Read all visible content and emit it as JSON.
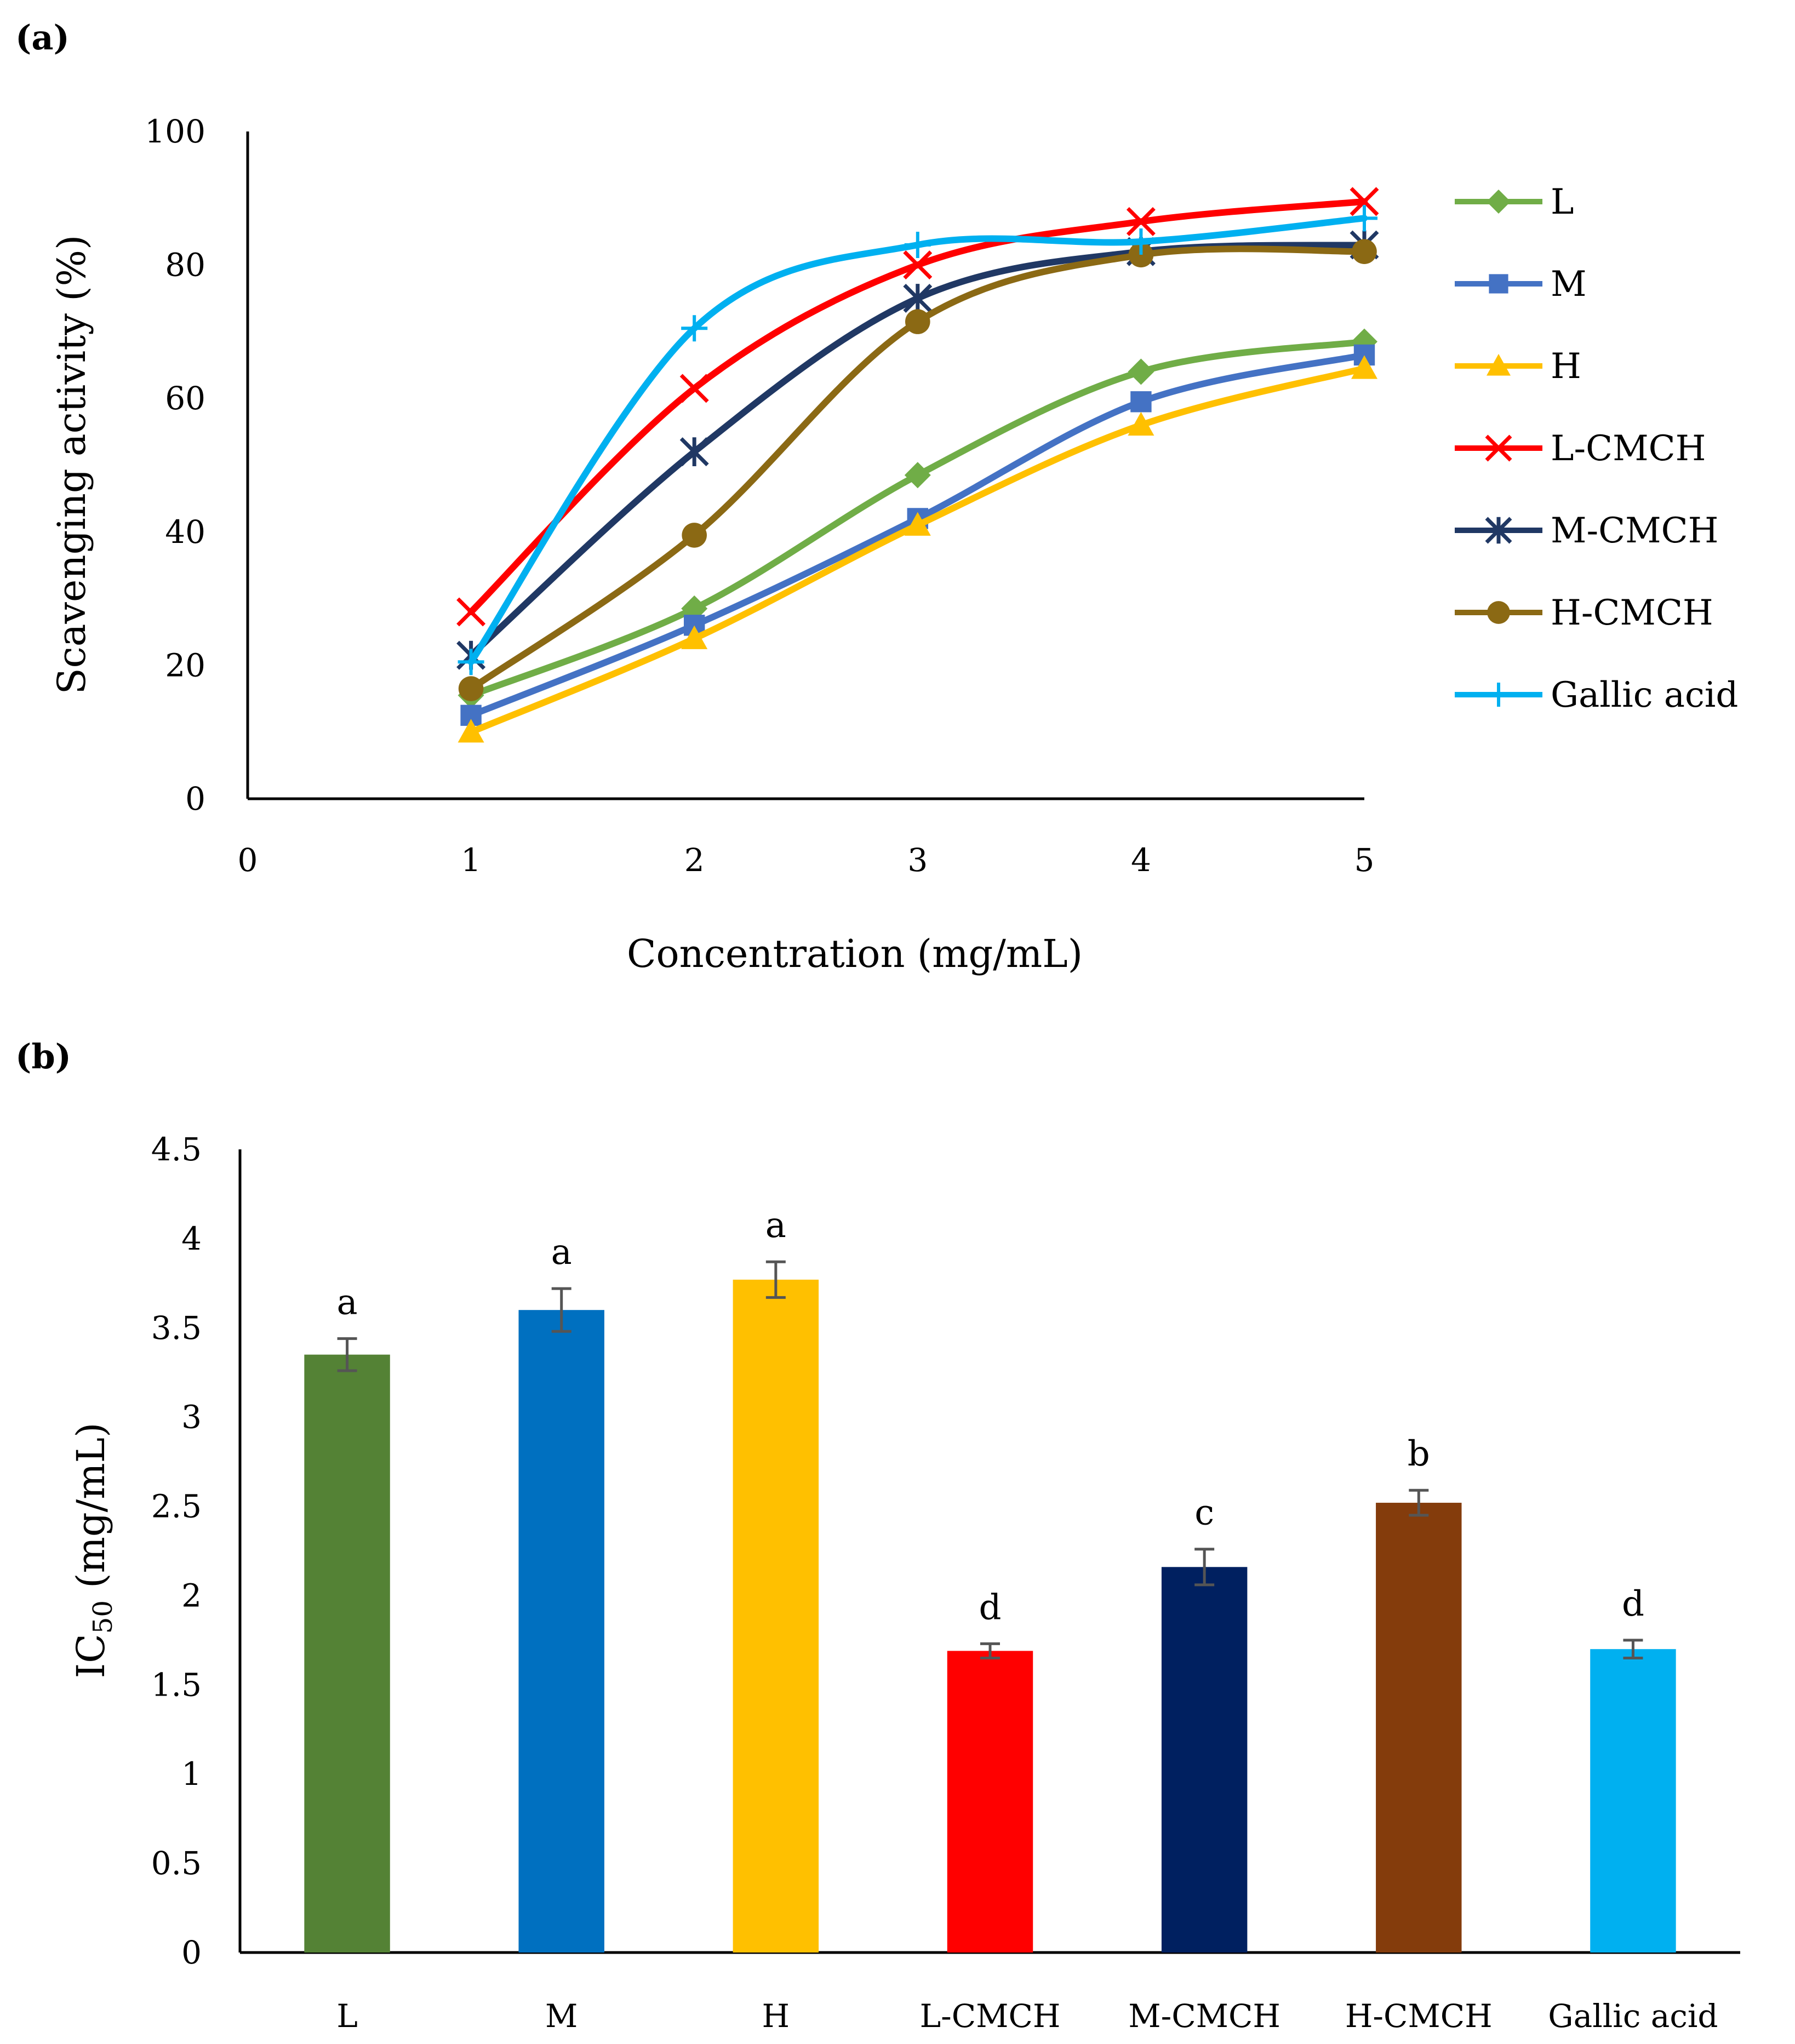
{
  "chart_data": [
    {
      "panel": "(a)",
      "type": "line",
      "xlabel": "Concentration (mg/mL)",
      "ylabel": "Scavenging activity (%)",
      "xlim": [
        0,
        5
      ],
      "ylim": [
        0,
        100
      ],
      "xticks": [
        "0",
        "1",
        "2",
        "3",
        "4",
        "5"
      ],
      "yticks": [
        "0",
        "20",
        "40",
        "60",
        "80",
        "100"
      ],
      "x": [
        1,
        2,
        3,
        4,
        5
      ],
      "legend_position": "right",
      "series": [
        {
          "name": "L",
          "values": [
            15.5,
            28.5,
            48.5,
            64,
            68.5
          ],
          "color": "#70AD47",
          "marker": "diamond"
        },
        {
          "name": "M",
          "values": [
            12.5,
            26,
            42,
            59.5,
            66.5
          ],
          "color": "#4472C4",
          "marker": "square"
        },
        {
          "name": "H",
          "values": [
            10,
            24,
            41,
            56,
            64.5
          ],
          "color": "#FFC000",
          "marker": "triangle"
        },
        {
          "name": "L-CMCH",
          "values": [
            28,
            61.5,
            80,
            86.5,
            89.5
          ],
          "color": "#FF0000",
          "marker": "x"
        },
        {
          "name": "M-CMCH",
          "values": [
            21.5,
            52,
            75,
            82,
            83
          ],
          "color": "#203864",
          "marker": "star"
        },
        {
          "name": "H-CMCH",
          "values": [
            16.5,
            39.5,
            71.5,
            81.5,
            82
          ],
          "color": "#8B6914",
          "marker": "circle"
        },
        {
          "name": "Gallic acid",
          "values": [
            20.5,
            70.5,
            83,
            83.5,
            87
          ],
          "color": "#00B0F0",
          "marker": "plus"
        }
      ]
    },
    {
      "panel": "(b)",
      "type": "bar",
      "ylabel_main": "IC",
      "ylabel_sub": "50",
      "ylabel_unit": " (mg/mL)",
      "ylim": [
        0,
        4.5
      ],
      "yticks": [
        "0",
        "0.5",
        "1",
        "1.5",
        "2",
        "2.5",
        "3",
        "3.5",
        "4",
        "4.5"
      ],
      "categories": [
        "L",
        "M",
        "H",
        "L-CMCH",
        "M-CMCH",
        "H-CMCH",
        "Gallic acid"
      ],
      "values": [
        3.35,
        3.6,
        3.77,
        1.69,
        2.16,
        2.52,
        1.7
      ],
      "errors": [
        0.09,
        0.12,
        0.1,
        0.04,
        0.1,
        0.07,
        0.05
      ],
      "significance": [
        "a",
        "a",
        "a",
        "d",
        "c",
        "b",
        "d"
      ],
      "colors": [
        "#548235",
        "#0070C0",
        "#FFC000",
        "#FF0000",
        "#002060",
        "#843C0C",
        "#00B0F0"
      ]
    }
  ]
}
